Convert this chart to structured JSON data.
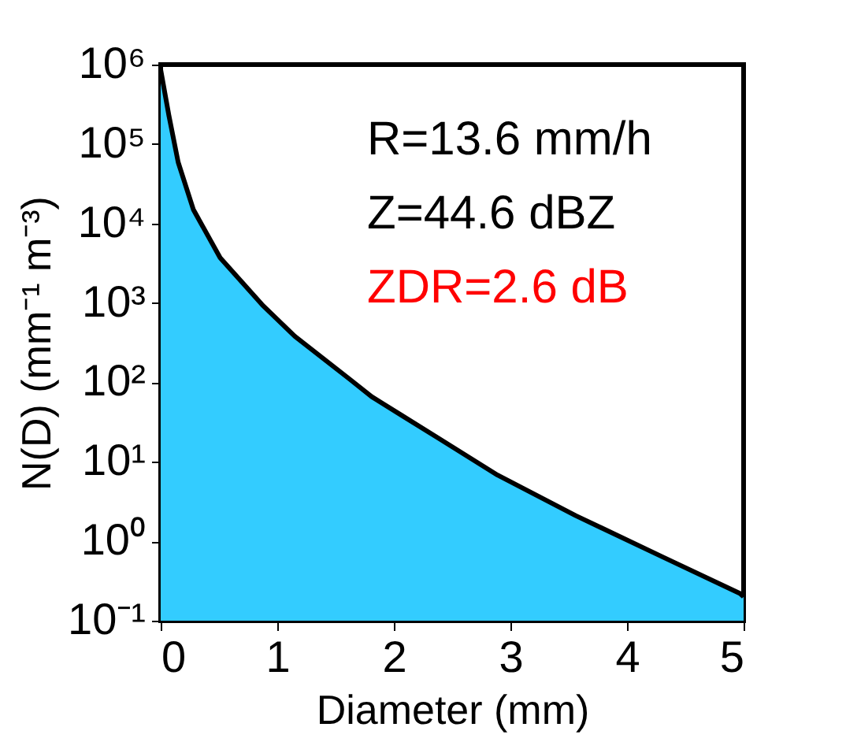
{
  "chart_data": {
    "type": "area",
    "xlabel": "Diameter (mm)",
    "ylabel": "N(D) (mm⁻¹ m⁻³)",
    "x": [
      0,
      0.07,
      0.15,
      0.28,
      0.51,
      0.87,
      1.15,
      1.62,
      1.81,
      2.39,
      2.89,
      3.56,
      4.31,
      4.97,
      5
    ],
    "series": [
      {
        "color": "#33ccff",
        "values": [
          860000,
          230000,
          59000,
          15000,
          3700,
          950,
          380,
          110,
          66,
          19.5,
          6.8,
          2.1,
          0.63,
          0.22,
          0.2
        ]
      }
    ],
    "log": "y",
    "xlim": [
      0,
      5
    ],
    "ylim": [
      0.1,
      1000000
    ],
    "xticks": [
      0,
      1,
      2,
      3,
      4,
      5
    ],
    "yticks": [
      {
        "value": 0.1,
        "label": "10⁻¹"
      },
      {
        "value": 1,
        "label": "10⁰"
      },
      {
        "value": 10,
        "label": "10¹"
      },
      {
        "value": 100,
        "label": "10²"
      },
      {
        "value": 1000,
        "label": "10³"
      },
      {
        "value": 10000,
        "label": "10⁴"
      },
      {
        "value": 100000,
        "label": "10⁵"
      },
      {
        "value": 1000000,
        "label": "10⁶"
      }
    ],
    "grid": false,
    "annotations": [
      "R=13.6 mm/h",
      "Z=44.6 dBZ",
      "ZDR=2.6 dB"
    ]
  }
}
